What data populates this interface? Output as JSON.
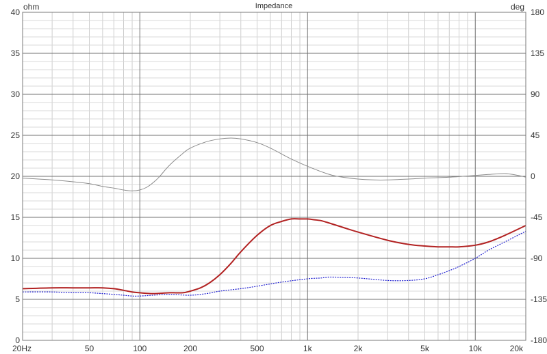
{
  "chart_data": {
    "type": "line",
    "title": "Impedance",
    "ylabel_left": "ohm",
    "ylabel_right": "deg",
    "x_scale": "log",
    "xlim": [
      20,
      20000
    ],
    "ylim_left": [
      0,
      40
    ],
    "ylim_right": [
      -180,
      180
    ],
    "grid": true,
    "x_tick_labels": [
      {
        "value": 20,
        "label": "20Hz"
      },
      {
        "value": 50,
        "label": "50"
      },
      {
        "value": 100,
        "label": "100"
      },
      {
        "value": 200,
        "label": "200"
      },
      {
        "value": 500,
        "label": "500"
      },
      {
        "value": 1000,
        "label": "1k"
      },
      {
        "value": 2000,
        "label": "2k"
      },
      {
        "value": 5000,
        "label": "5k"
      },
      {
        "value": 10000,
        "label": "10k"
      },
      {
        "value": 20000,
        "label": "20k"
      }
    ],
    "y_left_ticks": [
      0,
      5,
      10,
      15,
      20,
      25,
      30,
      35,
      40
    ],
    "y_right_ticks": [
      -180,
      -135,
      -90,
      -45,
      0,
      45,
      90,
      135,
      180
    ],
    "series": [
      {
        "color": "#b22222",
        "axis": "left",
        "style": "solid",
        "x": [
          20,
          30,
          40,
          50,
          60,
          70,
          80,
          90,
          100,
          120,
          150,
          180,
          200,
          230,
          260,
          300,
          350,
          400,
          500,
          600,
          700,
          800,
          900,
          1000,
          1100,
          1200,
          1300,
          1500,
          2000,
          3000,
          4000,
          5000,
          6000,
          7000,
          8000,
          10000,
          12000,
          15000,
          20000
        ],
        "y": [
          6.3,
          6.4,
          6.4,
          6.4,
          6.4,
          6.3,
          6.1,
          5.9,
          5.8,
          5.7,
          5.8,
          5.8,
          6.0,
          6.4,
          7.0,
          8.0,
          9.4,
          10.8,
          12.8,
          14.0,
          14.5,
          14.8,
          14.8,
          14.8,
          14.7,
          14.6,
          14.4,
          14.0,
          13.2,
          12.2,
          11.7,
          11.5,
          11.4,
          11.4,
          11.4,
          11.6,
          12.0,
          12.8,
          14.0
        ]
      },
      {
        "color": "#1f1fcf",
        "axis": "left",
        "style": "dotted",
        "x": [
          20,
          30,
          40,
          50,
          60,
          70,
          80,
          90,
          100,
          120,
          150,
          200,
          250,
          300,
          400,
          500,
          700,
          1000,
          1200,
          1300,
          1500,
          2000,
          3000,
          4000,
          5000,
          6000,
          7000,
          8000,
          10000,
          12000,
          15000,
          20000
        ],
        "y": [
          5.9,
          5.9,
          5.8,
          5.8,
          5.7,
          5.6,
          5.5,
          5.4,
          5.4,
          5.5,
          5.6,
          5.5,
          5.7,
          6.0,
          6.3,
          6.6,
          7.1,
          7.5,
          7.6,
          7.7,
          7.7,
          7.6,
          7.3,
          7.3,
          7.5,
          8.0,
          8.5,
          9.0,
          10.0,
          11.0,
          12.0,
          13.3
        ]
      },
      {
        "color": "#8c8c8c",
        "axis": "right",
        "style": "solid",
        "x": [
          20,
          30,
          40,
          50,
          60,
          70,
          80,
          90,
          100,
          110,
          120,
          130,
          150,
          180,
          200,
          250,
          300,
          350,
          400,
          500,
          600,
          800,
          1000,
          1300,
          1500,
          2000,
          2500,
          3000,
          4000,
          5000,
          7000,
          10000,
          12000,
          15000,
          18000,
          20000
        ],
        "y": [
          -2,
          -4,
          -6,
          -8,
          -11,
          -13,
          -15,
          -16,
          -15,
          -12,
          -7,
          -1,
          12,
          25,
          31,
          38,
          41,
          42,
          41,
          37,
          31,
          19,
          11,
          3,
          0,
          -3,
          -4,
          -4,
          -3,
          -2,
          -1,
          1,
          2,
          3,
          1,
          -1
        ]
      }
    ]
  }
}
